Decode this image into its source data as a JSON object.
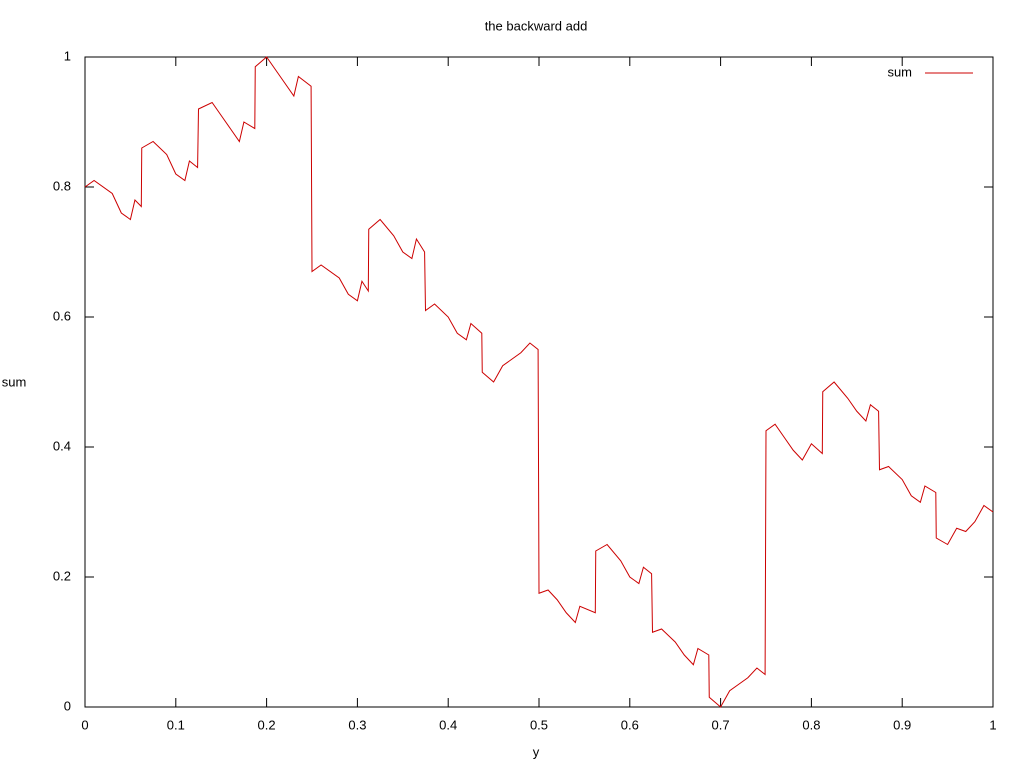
{
  "chart_data": {
    "type": "line",
    "title": "the backward add",
    "x_label": "y",
    "y_label": "sum",
    "x": [
      0,
      0.01,
      0.03,
      0.04,
      0.05,
      0.055,
      0.062,
      0.0625,
      0.075,
      0.09,
      0.1,
      0.11,
      0.115,
      0.124,
      0.125,
      0.14,
      0.15,
      0.16,
      0.17,
      0.175,
      0.187,
      0.1875,
      0.2,
      0.21,
      0.22,
      0.23,
      0.235,
      0.249,
      0.25,
      0.26,
      0.28,
      0.29,
      0.3,
      0.305,
      0.312,
      0.3125,
      0.325,
      0.34,
      0.35,
      0.36,
      0.365,
      0.374,
      0.375,
      0.385,
      0.4,
      0.41,
      0.42,
      0.425,
      0.437,
      0.4375,
      0.45,
      0.46,
      0.47,
      0.48,
      0.49,
      0.499,
      0.5,
      0.51,
      0.52,
      0.53,
      0.54,
      0.545,
      0.562,
      0.5625,
      0.575,
      0.59,
      0.6,
      0.61,
      0.615,
      0.624,
      0.625,
      0.635,
      0.65,
      0.66,
      0.67,
      0.675,
      0.687,
      0.6875,
      0.7,
      0.71,
      0.72,
      0.73,
      0.74,
      0.749,
      0.75,
      0.76,
      0.77,
      0.78,
      0.79,
      0.8,
      0.812,
      0.8125,
      0.825,
      0.84,
      0.85,
      0.86,
      0.865,
      0.874,
      0.875,
      0.885,
      0.9,
      0.91,
      0.92,
      0.925,
      0.937,
      0.9375,
      0.95,
      0.96,
      0.97,
      0.98,
      0.99,
      1
    ],
    "series": [
      {
        "name": "sum",
        "color": "#cc0000",
        "values": [
          0.8,
          0.81,
          0.79,
          0.76,
          0.75,
          0.78,
          0.77,
          0.86,
          0.87,
          0.85,
          0.82,
          0.81,
          0.84,
          0.83,
          0.92,
          0.93,
          0.91,
          0.89,
          0.87,
          0.9,
          0.89,
          0.985,
          1.0,
          0.98,
          0.96,
          0.94,
          0.97,
          0.955,
          0.67,
          0.68,
          0.66,
          0.635,
          0.625,
          0.655,
          0.64,
          0.735,
          0.75,
          0.725,
          0.7,
          0.69,
          0.72,
          0.7,
          0.61,
          0.62,
          0.6,
          0.575,
          0.565,
          0.59,
          0.575,
          0.515,
          0.5,
          0.525,
          0.535,
          0.545,
          0.56,
          0.55,
          0.175,
          0.18,
          0.165,
          0.145,
          0.13,
          0.155,
          0.145,
          0.24,
          0.25,
          0.225,
          0.2,
          0.19,
          0.215,
          0.205,
          0.115,
          0.12,
          0.1,
          0.08,
          0.065,
          0.09,
          0.08,
          0.015,
          0.0,
          0.025,
          0.035,
          0.045,
          0.06,
          0.05,
          0.425,
          0.435,
          0.415,
          0.395,
          0.38,
          0.405,
          0.39,
          0.485,
          0.5,
          0.475,
          0.455,
          0.44,
          0.465,
          0.455,
          0.365,
          0.37,
          0.35,
          0.325,
          0.315,
          0.34,
          0.33,
          0.26,
          0.25,
          0.275,
          0.27,
          0.285,
          0.31,
          0.3
        ]
      }
    ],
    "xlim": [
      0,
      1
    ],
    "ylim": [
      0,
      1
    ],
    "xticks": [
      0,
      0.1,
      0.2,
      0.3,
      0.4,
      0.5,
      0.6,
      0.7,
      0.8,
      0.9,
      1
    ],
    "yticks": [
      0,
      0.2,
      0.4,
      0.6,
      0.8,
      1
    ],
    "legend": "top-right"
  }
}
